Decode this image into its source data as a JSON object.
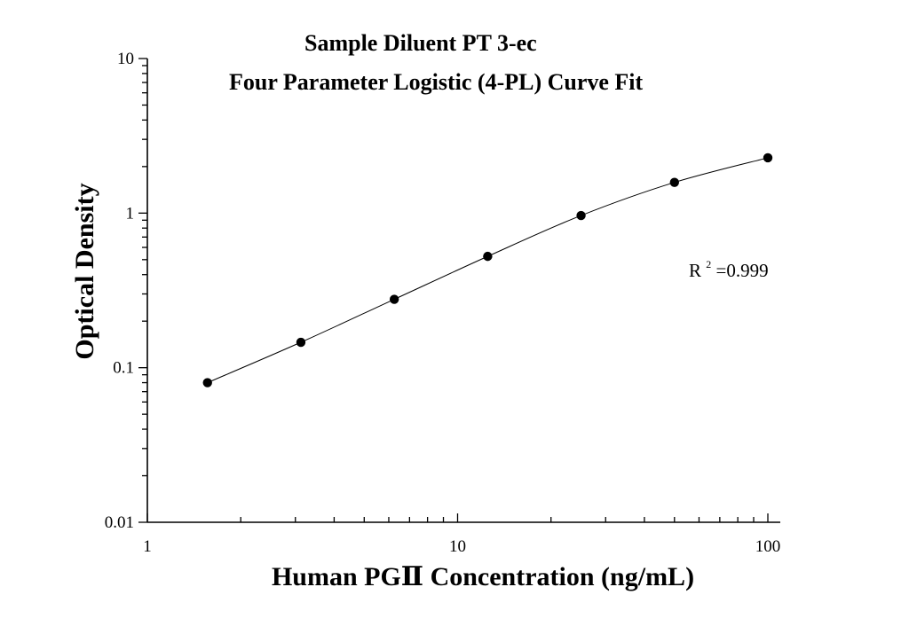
{
  "chart_data": {
    "type": "scatter",
    "title_lines": [
      "Sample Diluent PT 3-ec",
      "Four Parameter Logistic (4-PL) Curve Fit"
    ],
    "xlabel": "Human PGⅡ Concentration (ng/mL)",
    "ylabel": "Optical Density",
    "xscale": "log",
    "yscale": "log",
    "xlim": [
      1,
      100
    ],
    "ylim": [
      0.01,
      10
    ],
    "x_ticks": [
      1,
      10,
      100
    ],
    "x_tick_labels": [
      "1",
      "10",
      "100"
    ],
    "y_ticks": [
      0.01,
      0.1,
      1,
      10
    ],
    "y_tick_labels": [
      "0.01",
      "0.1",
      "1",
      "10"
    ],
    "grid": false,
    "series": [
      {
        "x": [
          1.5625,
          3.125,
          6.25,
          12.5,
          25,
          50,
          100
        ],
        "y": [
          0.08,
          0.146,
          0.277,
          0.525,
          0.965,
          1.58,
          2.28
        ]
      }
    ],
    "fit_curve": "4-PL",
    "annotation": {
      "prefix": "R",
      "superscript": "2",
      "suffix": "=0.999"
    },
    "colors": {
      "points": "#000000",
      "curve": "#000000",
      "axes": "#000000"
    }
  }
}
